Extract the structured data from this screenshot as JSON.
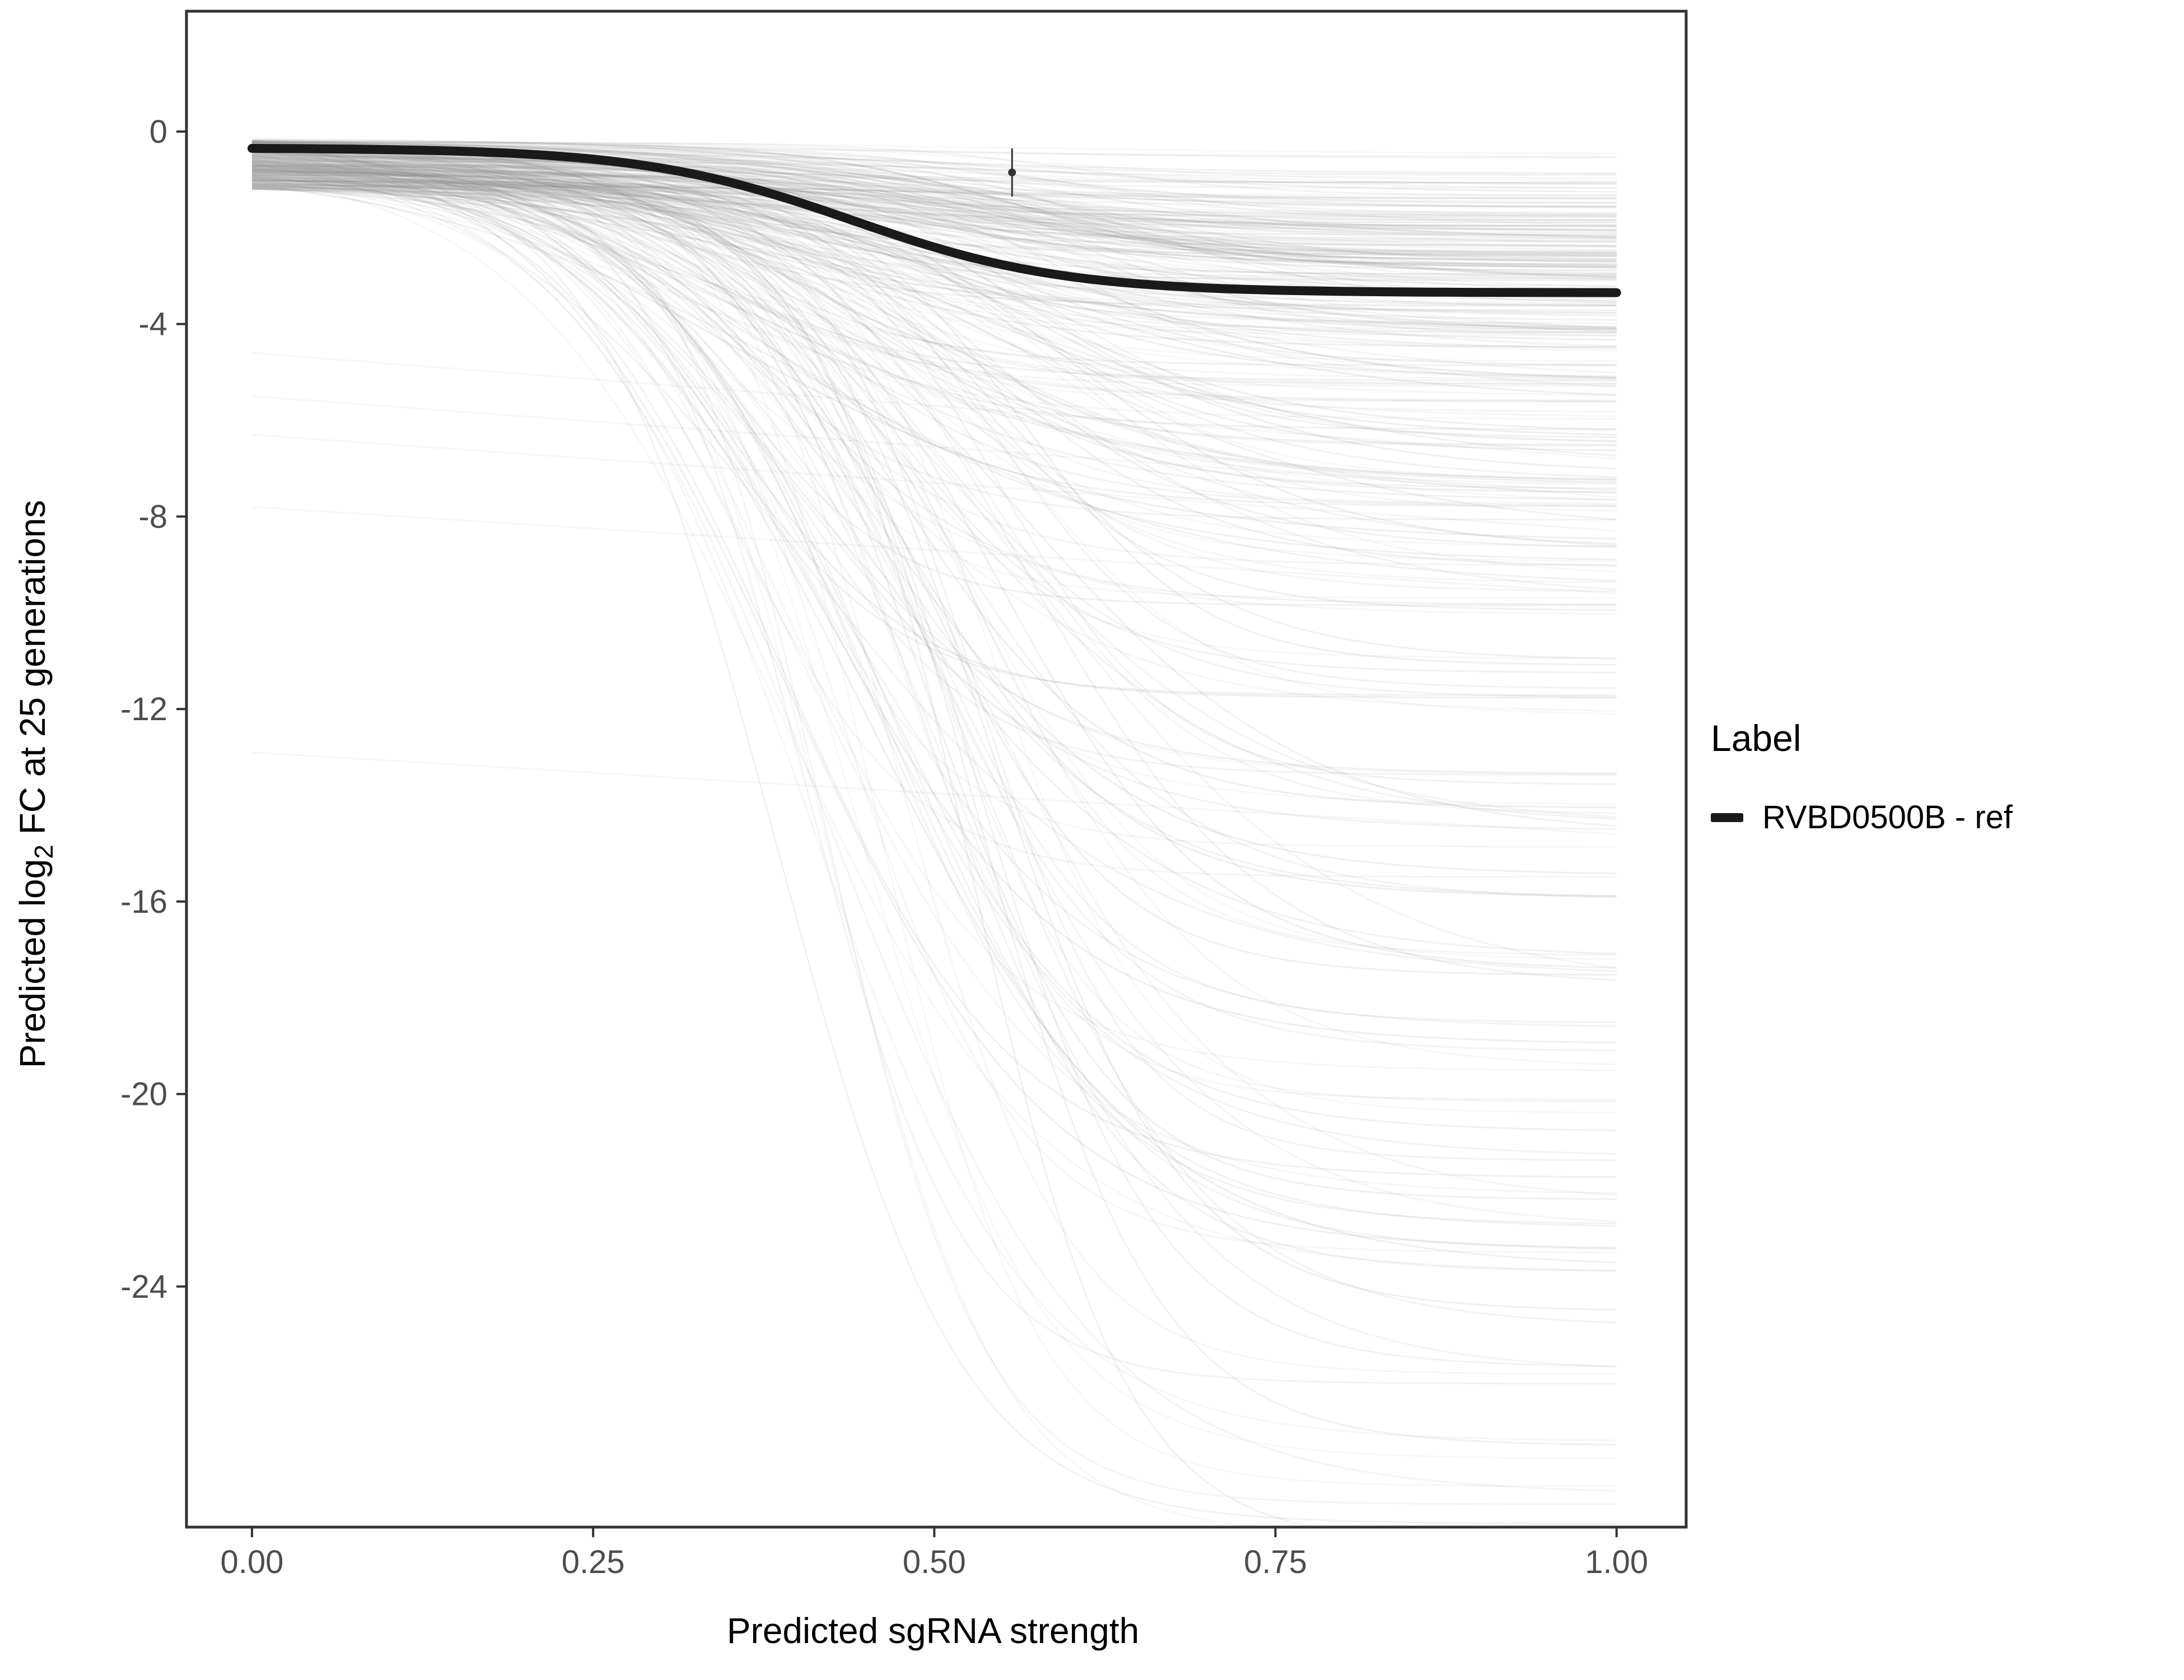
{
  "chart_data": {
    "type": "line",
    "title": "",
    "xlabel": "Predicted sgRNA strength",
    "ylabel": "Predicted log2 FC at 25 generations",
    "ylabel_parts": {
      "prefix": "Predicted  log",
      "sub": "2",
      "suffix": " FC at 25 generations"
    },
    "x_ticks": [
      0.0,
      0.25,
      0.5,
      0.75,
      1.0
    ],
    "x_tick_labels": [
      "0.00",
      "0.25",
      "0.50",
      "0.75",
      "1.00"
    ],
    "y_ticks": [
      0,
      -4,
      -8,
      -12,
      -16,
      -20,
      -24
    ],
    "y_tick_labels": [
      "0",
      "-4",
      "-8",
      "-12",
      "-16",
      "-20",
      "-24"
    ],
    "xlim": [
      -0.048,
      1.051
    ],
    "ylim": [
      -29.0,
      2.5
    ],
    "grid": false,
    "panel": {
      "background": "#ffffff",
      "border_color": "#333333",
      "tick_color": "#333333",
      "tick_label_color": "#4d4d4d"
    },
    "legend": {
      "title": "Label",
      "position": "right",
      "entries": [
        {
          "label": "RVBD0500B - ref",
          "color": "#1a1a1a",
          "type": "line"
        }
      ]
    },
    "highlight_series": {
      "name": "RVBD0500B - ref",
      "color": "#1a1a1a",
      "model": "sigmoid",
      "y0": -0.35,
      "depth": 3.0,
      "midpoint": 0.44,
      "steepness": 13,
      "linewidth": 16
    },
    "point_annotation": {
      "x": 0.557,
      "y": -0.85,
      "error": 0.5,
      "color": "#333333"
    },
    "background_curves": {
      "description": "cloud of unlabeled per-sgRNA sigmoid prediction curves",
      "color": "#8c8c8c",
      "linewidth": 3,
      "count": 300,
      "seed": 42,
      "y0_range": [
        -0.15,
        -1.2
      ],
      "opacity_range": [
        0.06,
        0.14
      ],
      "groups": [
        {
          "share": 0.45,
          "depth_range": [
            0.2,
            3.5
          ],
          "midpoint_range": [
            0.3,
            0.64
          ],
          "steepness_range": [
            6,
            14
          ]
        },
        {
          "share": 0.27,
          "depth_range": [
            3.5,
            9.0
          ],
          "midpoint_range": [
            0.3,
            0.6
          ],
          "steepness_range": [
            6,
            14
          ]
        },
        {
          "share": 0.16,
          "depth_range": [
            9.0,
            18.0
          ],
          "midpoint_range": [
            0.34,
            0.58
          ],
          "steepness_range": [
            8,
            16
          ]
        },
        {
          "share": 0.12,
          "depth_range": [
            18.0,
            28.5
          ],
          "midpoint_range": [
            0.38,
            0.56
          ],
          "steepness_range": [
            9,
            18
          ]
        }
      ]
    },
    "diagonal_lines": [
      {
        "y_start": -4.6,
        "y_end": -6.8
      },
      {
        "y_start": -5.5,
        "y_end": -7.6
      },
      {
        "y_start": -6.3,
        "y_end": -8.3
      },
      {
        "y_start": -7.8,
        "y_end": -9.6
      },
      {
        "y_start": -12.9,
        "y_end": -14.6
      }
    ]
  }
}
